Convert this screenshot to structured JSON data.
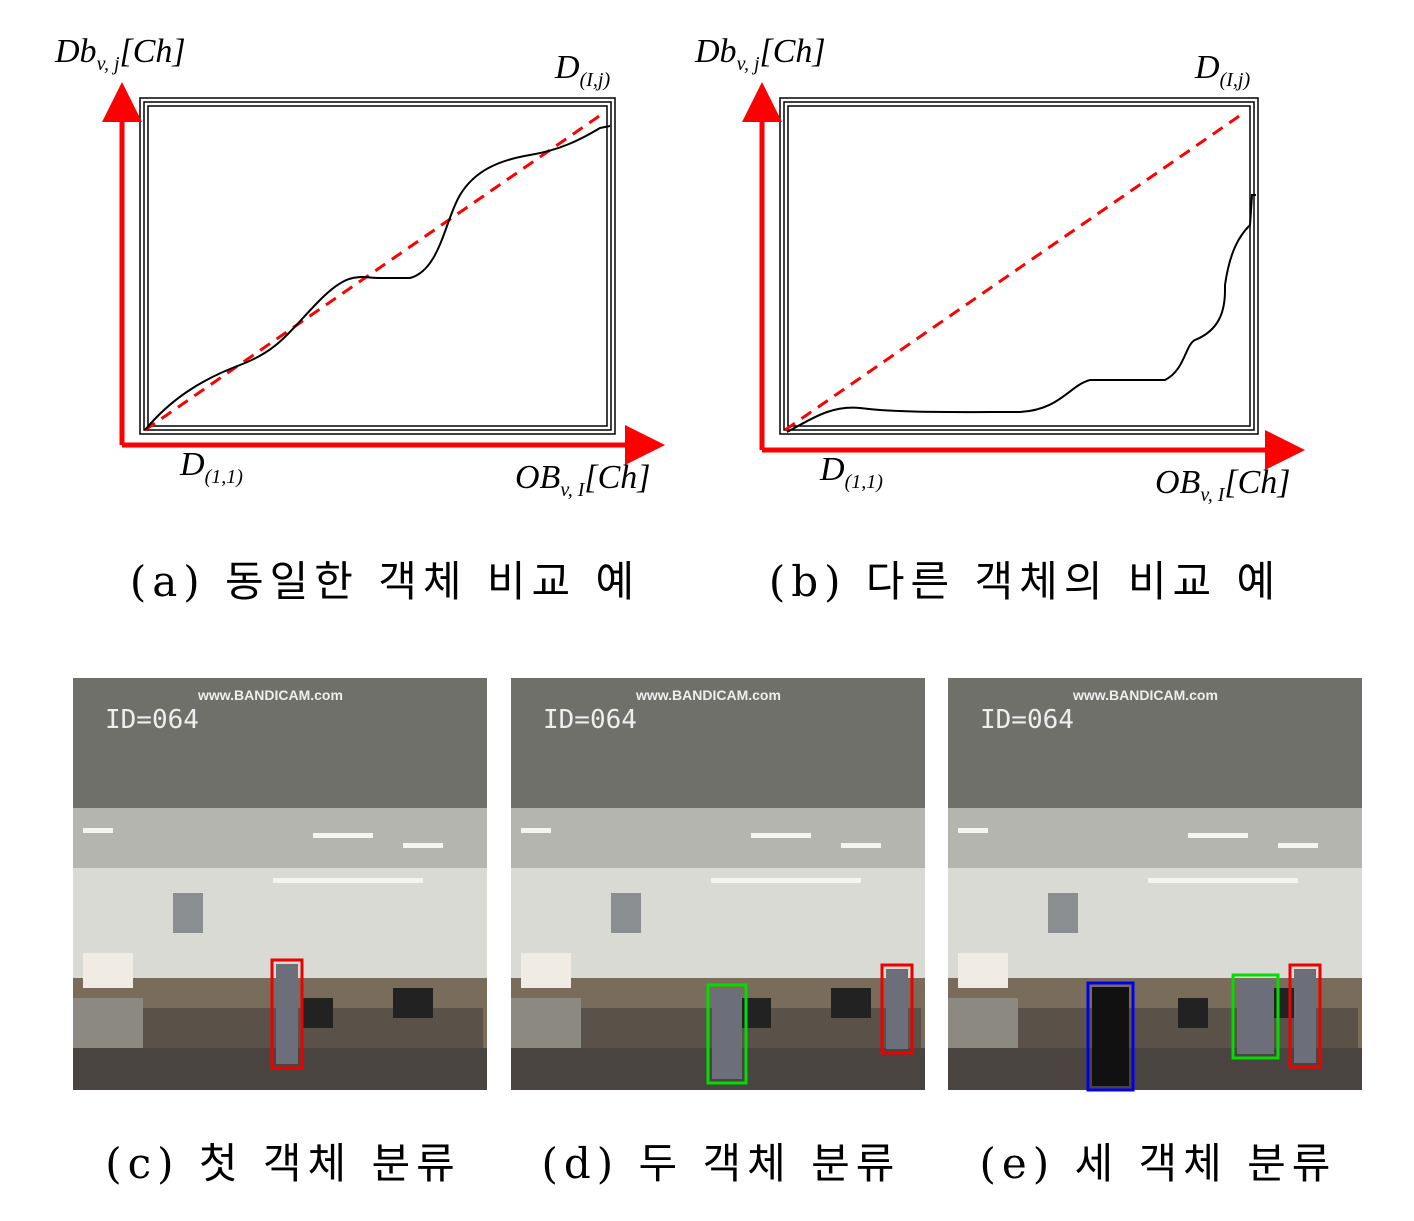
{
  "figures": [
    {
      "label": "(a) 동일한 객체 비교 예",
      "y_axis_label": {
        "main": "Db",
        "sub": "v, j",
        "tail": "[Ch]"
      },
      "x_axis_label": {
        "main": "OB",
        "sub": "v, I",
        "tail": "[Ch]"
      },
      "start_label": {
        "main": "D",
        "sub": "(1,1)"
      },
      "end_label": {
        "main": "D",
        "sub": "(I,j)"
      }
    },
    {
      "label": "(b) 다른 객체의 비교 예",
      "y_axis_label": {
        "main": "Db",
        "sub": "v, j",
        "tail": "[Ch]"
      },
      "x_axis_label": {
        "main": "OB",
        "sub": "v, I",
        "tail": "[Ch]"
      },
      "start_label": {
        "main": "D",
        "sub": "(1,1)"
      },
      "end_label": {
        "main": "D",
        "sub": "(I,j)"
      }
    }
  ],
  "photos": [
    {
      "caption": "(c) 첫 객체 분류",
      "id_text": "ID=064",
      "watermark": "www.BANDICAM.com"
    },
    {
      "caption": "(d) 두 객체 분류",
      "id_text": "ID=064",
      "watermark": "www.BANDICAM.com"
    },
    {
      "caption": "(e) 세 객체 분류",
      "id_text": "ID=064",
      "watermark": "www.BANDICAM.com"
    }
  ]
}
